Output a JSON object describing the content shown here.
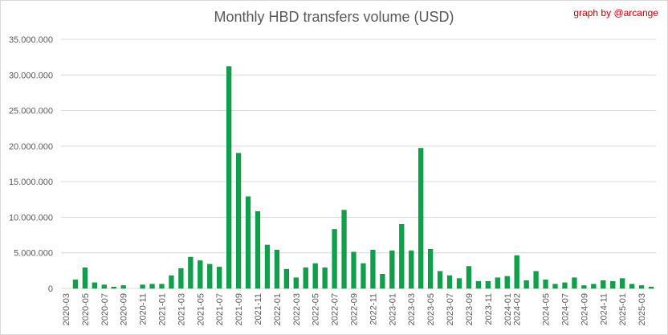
{
  "title": "Monthly HBD transfers volume (USD)",
  "credit": "graph by @arcange",
  "colors": {
    "bar": "#0ea14a",
    "bar_edge": "#078a3c",
    "grid": "#d9d9d9",
    "text": "#595959",
    "credit": "#c00000"
  },
  "chart_data": {
    "type": "bar",
    "title": "Monthly HBD transfers volume (USD)",
    "xlabel": "",
    "ylabel": "",
    "ylim": [
      0,
      35000000
    ],
    "yticks": [
      0,
      5000000,
      10000000,
      15000000,
      20000000,
      25000000,
      30000000,
      35000000
    ],
    "ytick_labels": [
      "0",
      "5.000.000",
      "10.000.000",
      "15.000.000",
      "20.000.000",
      "25.000.000",
      "30.000.000",
      "35.000.000"
    ],
    "grid": true,
    "legend": "none",
    "x_tick_labels": [
      "2020-03",
      "2020-05",
      "2020-07",
      "2020-09",
      "2020-11",
      "2021-01",
      "2021-03",
      "2021-05",
      "2021-07",
      "2021-09",
      "2021-11",
      "2022-01",
      "2022-03",
      "2022-05",
      "2022-07",
      "2022-09",
      "2022-11",
      "2023-01",
      "2023-03",
      "2023-05",
      "2023-07",
      "2023-09",
      "2023-11",
      "2024-01",
      "2024-02",
      "2024-05",
      "2024-07",
      "2024-09",
      "2024-11",
      "2025-01",
      "2025-03"
    ],
    "categories": [
      "2020-03",
      "2020-04",
      "2020-05",
      "2020-06",
      "2020-07",
      "2020-08",
      "2020-09",
      "2020-10",
      "2020-11",
      "2020-12",
      "2021-01",
      "2021-02",
      "2021-03",
      "2021-04",
      "2021-05",
      "2021-06",
      "2021-07",
      "2021-08",
      "2021-09",
      "2021-10",
      "2021-11",
      "2021-12",
      "2022-01",
      "2022-02",
      "2022-03",
      "2022-04",
      "2022-05",
      "2022-06",
      "2022-07",
      "2022-08",
      "2022-09",
      "2022-10",
      "2022-11",
      "2022-12",
      "2023-01",
      "2023-02",
      "2023-03",
      "2023-04",
      "2023-05",
      "2023-06",
      "2023-07",
      "2023-08",
      "2023-09",
      "2023-10",
      "2023-11",
      "2023-12",
      "2024-01",
      "2024-02",
      "2024-03",
      "2024-04",
      "2024-05",
      "2024-06",
      "2024-07",
      "2024-08",
      "2024-09",
      "2024-10",
      "2024-11",
      "2024-12",
      "2025-01",
      "2025-02",
      "2025-03",
      "2025-04"
    ],
    "values": [
      0,
      1200000,
      2900000,
      800000,
      500000,
      200000,
      400000,
      0,
      500000,
      600000,
      600000,
      1800000,
      2800000,
      4400000,
      3900000,
      3400000,
      3000000,
      31200000,
      19000000,
      12900000,
      10800000,
      6100000,
      5400000,
      2700000,
      1500000,
      2900000,
      3500000,
      2900000,
      8300000,
      11000000,
      5100000,
      3500000,
      5400000,
      2000000,
      5300000,
      9000000,
      5300000,
      19700000,
      5500000,
      2400000,
      1800000,
      1400000,
      3100000,
      1000000,
      1000000,
      1500000,
      1700000,
      4600000,
      1100000,
      2400000,
      1200000,
      600000,
      800000,
      1500000,
      400000,
      600000,
      1100000,
      1000000,
      1400000,
      600000,
      400000,
      200000
    ]
  }
}
